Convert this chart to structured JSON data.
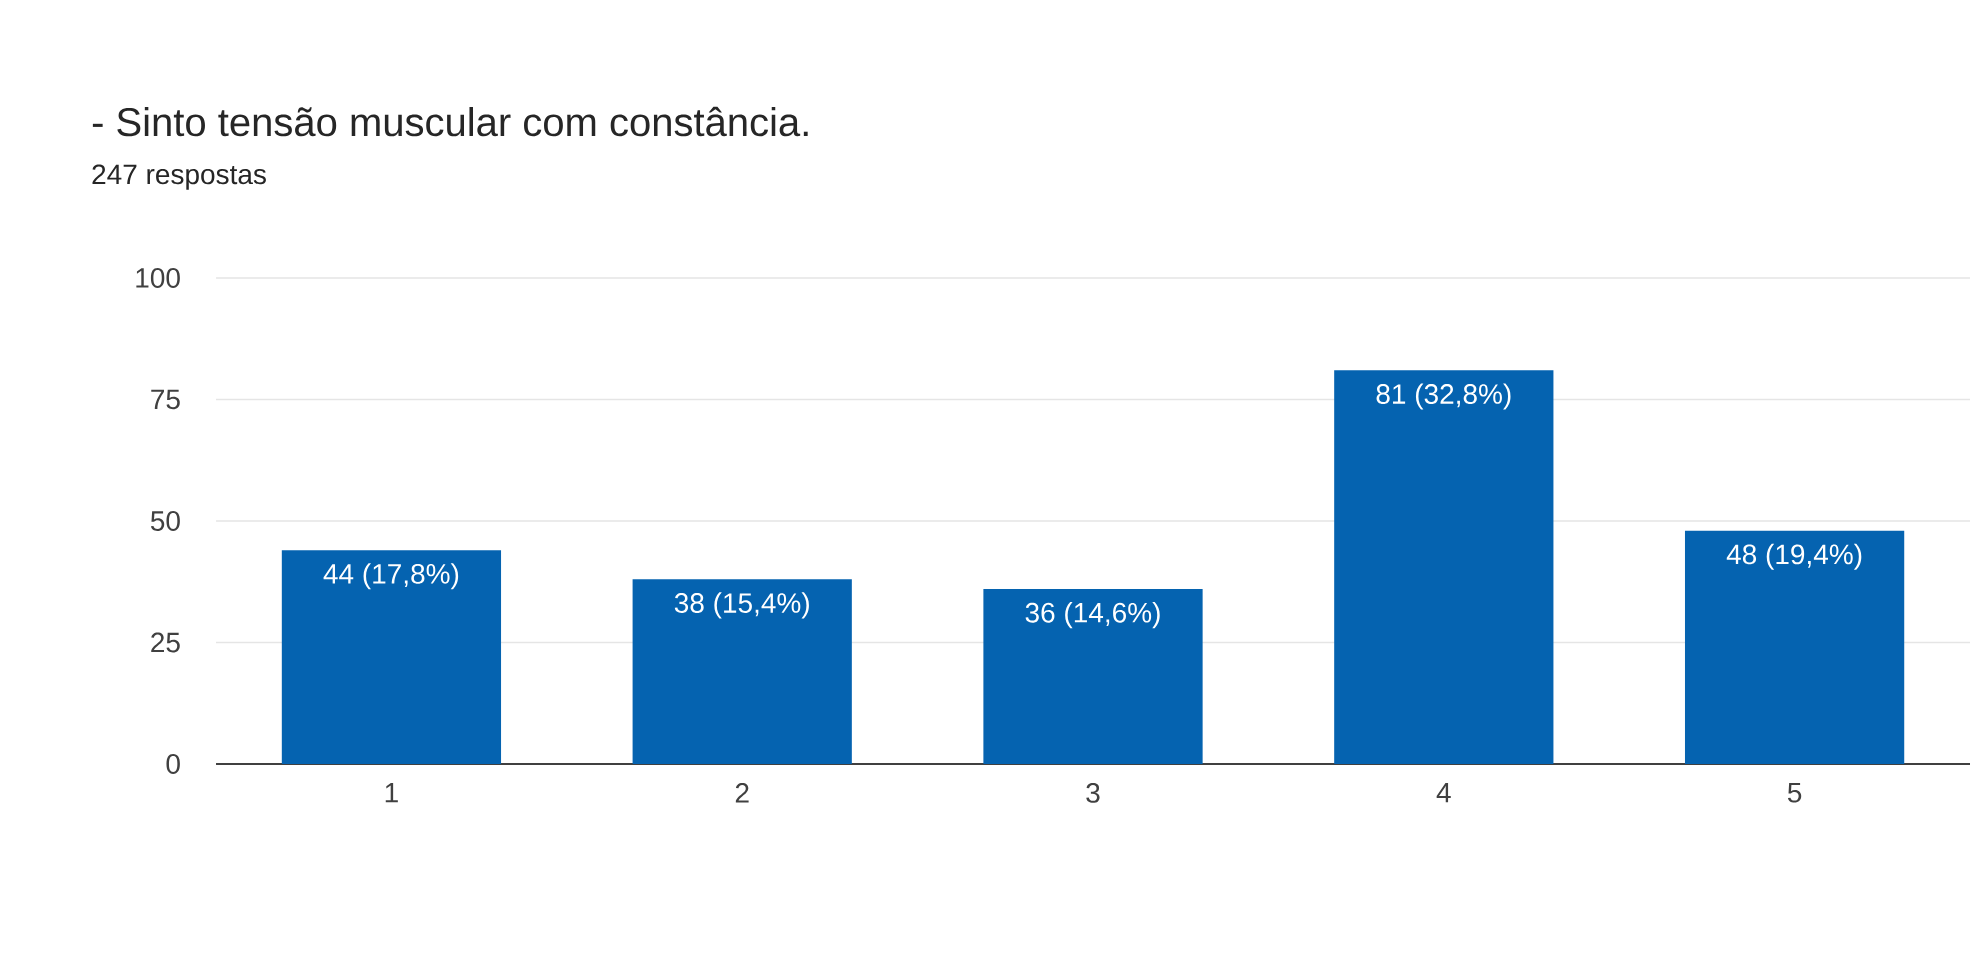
{
  "chart_data": {
    "type": "bar",
    "title": "- Sinto tensão muscular com constância.",
    "subtitle": "247 respostas",
    "categories": [
      "1",
      "2",
      "3",
      "4",
      "5"
    ],
    "values": [
      44,
      38,
      36,
      81,
      48
    ],
    "value_labels": [
      "44 (17,8%)",
      "38 (15,4%)",
      "36 (14,6%)",
      "81 (32,8%)",
      "48 (19,4%)"
    ],
    "color": "#0563b0",
    "ylim": [
      0,
      100
    ],
    "yticks": [
      0,
      25,
      50,
      75,
      100
    ],
    "grid": "y"
  }
}
